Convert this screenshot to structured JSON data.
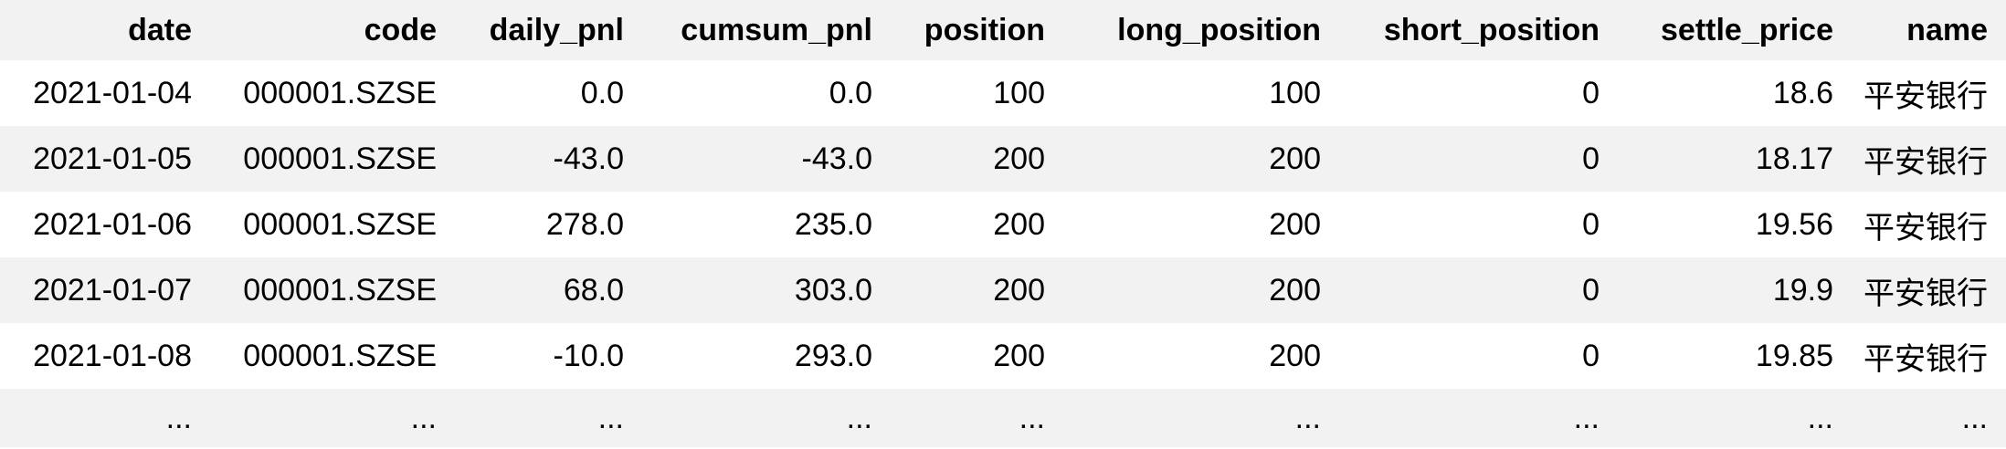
{
  "table": {
    "columns": [
      "date",
      "code",
      "daily_pnl",
      "cumsum_pnl",
      "position",
      "long_position",
      "short_position",
      "settle_price",
      "name"
    ],
    "rows": [
      [
        "2021-01-04",
        "000001.SZSE",
        "0.0",
        "0.0",
        "100",
        "100",
        "0",
        "18.6",
        "平安银行"
      ],
      [
        "2021-01-05",
        "000001.SZSE",
        "-43.0",
        "-43.0",
        "200",
        "200",
        "0",
        "18.17",
        "平安银行"
      ],
      [
        "2021-01-06",
        "000001.SZSE",
        "278.0",
        "235.0",
        "200",
        "200",
        "0",
        "19.56",
        "平安银行"
      ],
      [
        "2021-01-07",
        "000001.SZSE",
        "68.0",
        "303.0",
        "200",
        "200",
        "0",
        "19.9",
        "平安银行"
      ],
      [
        "2021-01-08",
        "000001.SZSE",
        "-10.0",
        "293.0",
        "200",
        "200",
        "0",
        "19.85",
        "平安银行"
      ]
    ],
    "ellipsis": [
      "...",
      "...",
      "...",
      "...",
      "...",
      "...",
      "...",
      "...",
      "..."
    ]
  },
  "colors": {
    "stripe": "#f2f2f2",
    "background": "#ffffff",
    "text": "#000000"
  }
}
